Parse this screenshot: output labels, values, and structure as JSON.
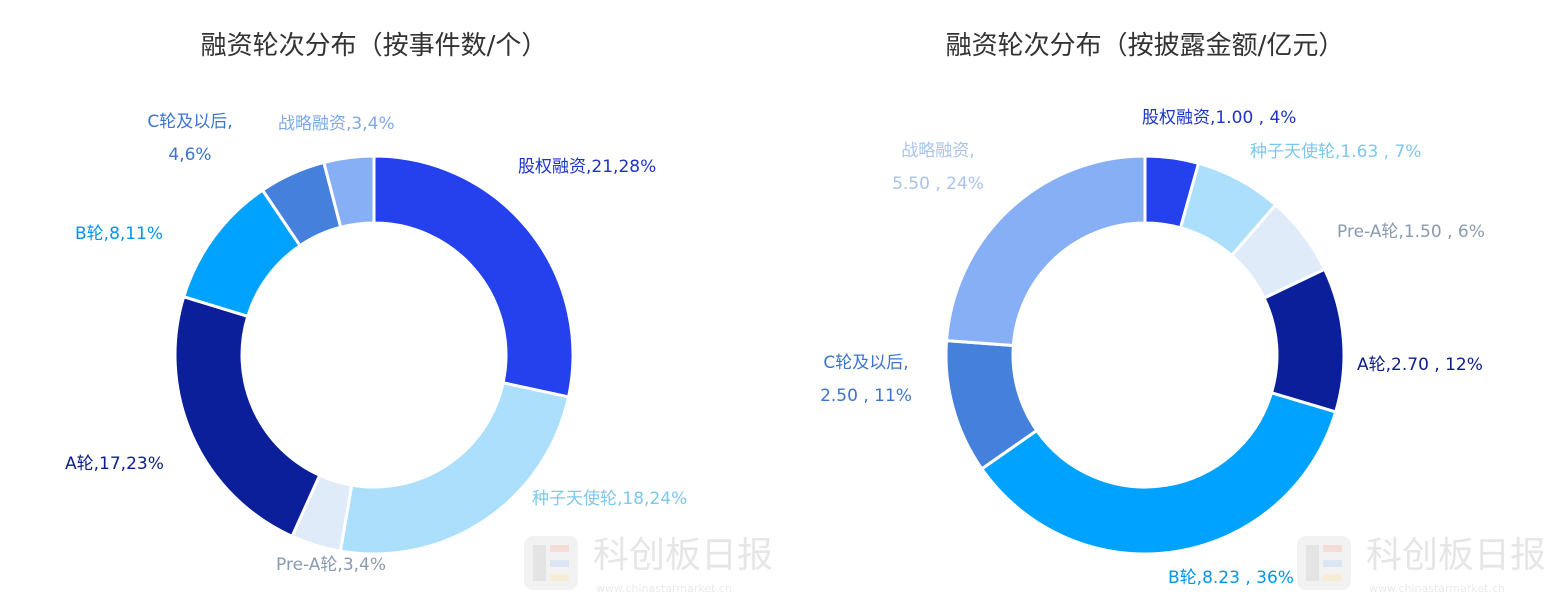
{
  "chart_data": [
    {
      "type": "pie",
      "title": "融资轮次分布（按事件数/个）",
      "slices": [
        {
          "name": "股权融资",
          "value": 21,
          "label": [
            "股权融资,21,28%"
          ],
          "color": "#2541ee",
          "label_color": "#1b33c9"
        },
        {
          "name": "种子天使轮",
          "value": 18,
          "label": [
            "种子天使轮,18,24%"
          ],
          "color": "#abdffc",
          "label_color": "#7cc8ee"
        },
        {
          "name": "Pre-A轮",
          "value": 3,
          "label": [
            "Pre-A轮,3,4%"
          ],
          "color": "#e0ebf9",
          "label_color": "#8a9ab0"
        },
        {
          "name": "A轮",
          "value": 17,
          "label": [
            "A轮,17,23%"
          ],
          "color": "#0b1f9a",
          "label_color": "#0b1f8a"
        },
        {
          "name": "B轮",
          "value": 8,
          "label": [
            "B轮,8,11%"
          ],
          "color": "#00a2ff",
          "label_color": "#0096f0"
        },
        {
          "name": "C轮及以后",
          "value": 4,
          "label": [
            "C轮及以后,",
            "4,6%"
          ],
          "color": "#4580dc",
          "label_color": "#3d74cc"
        },
        {
          "name": "战略融资",
          "value": 3,
          "label": [
            "战略融资,3,4%"
          ],
          "color": "#87aff5",
          "label_color": "#7fa8e6"
        }
      ]
    },
    {
      "type": "pie",
      "title": "融资轮次分布（按披露金额/亿元）",
      "slices": [
        {
          "name": "股权融资",
          "value": 1.0,
          "label": [
            "股权融资,1.00 , 4%"
          ],
          "color": "#2541ee",
          "label_color": "#1b33c9"
        },
        {
          "name": "种子天使轮",
          "value": 1.63,
          "label": [
            "种子天使轮,1.63 , 7%"
          ],
          "color": "#abdffc",
          "label_color": "#7cc8ee"
        },
        {
          "name": "Pre-A轮",
          "value": 1.5,
          "label": [
            "Pre-A轮,1.50 , 6%"
          ],
          "color": "#e0ebf9",
          "label_color": "#8a9ab0"
        },
        {
          "name": "A轮",
          "value": 2.7,
          "label": [
            "A轮,2.70 , 12%"
          ],
          "color": "#0b1f9a",
          "label_color": "#0b1f8a"
        },
        {
          "name": "B轮",
          "value": 8.23,
          "label": [
            "B轮,8.23 , 36%"
          ],
          "color": "#00a2ff",
          "label_color": "#0096f0"
        },
        {
          "name": "C轮及以后",
          "value": 2.5,
          "label": [
            "C轮及以后,",
            "2.50 , 11%"
          ],
          "color": "#4580dc",
          "label_color": "#3d74cc"
        },
        {
          "name": "战略融资",
          "value": 5.5,
          "label": [
            "战略融资,",
            "5.50 , 24%"
          ],
          "color": "#87aff5",
          "label_color": "#a9c3ea"
        }
      ]
    }
  ],
  "watermark": {
    "brand": "科创板日报",
    "url": "www.chinastarmarket.cn"
  }
}
